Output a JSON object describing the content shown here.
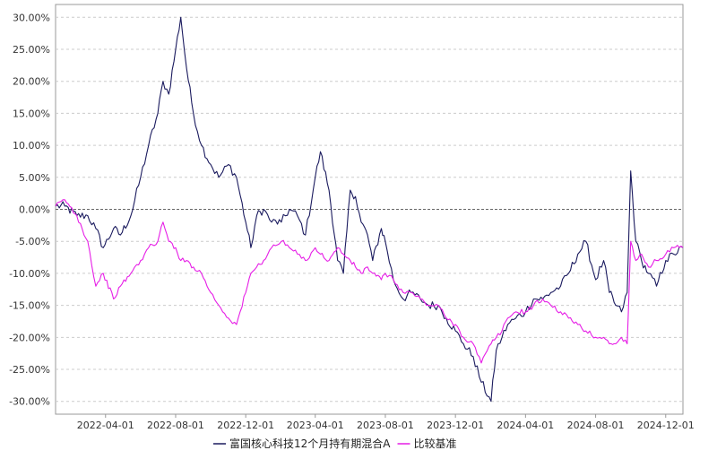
{
  "chart_data": {
    "type": "line",
    "title": "",
    "xlabel": "",
    "ylabel": "",
    "ylim": [
      -32,
      32
    ],
    "y_ticks": [
      30,
      25,
      20,
      15,
      10,
      5,
      0,
      -5,
      -10,
      -15,
      -20,
      -25,
      -30
    ],
    "y_tick_labels": [
      "30.00%",
      "25.00%",
      "20.00%",
      "15.00%",
      "10.00%",
      "5.00%",
      "0.00%",
      "-5.00%",
      "-10.00%",
      "-15.00%",
      "-20.00%",
      "-25.00%",
      "-30.00%"
    ],
    "x_range": [
      "2022-01-04",
      "2024-12-31"
    ],
    "x_tick_labels": [
      "2022-04-01",
      "2022-08-01",
      "2022-12-01",
      "2023-04-01",
      "2023-08-01",
      "2023-12-01",
      "2024-04-01",
      "2024-08-01",
      "2024-12-01"
    ],
    "grid": "horizontal-dashed",
    "zero_line": "dashed",
    "legend_position": "bottom-center",
    "series": [
      {
        "name": "富国核心科技12个月持有期混合A",
        "color": "#1a1a5e",
        "x": [
          "2022-01-04",
          "2022-01-20",
          "2022-02-10",
          "2022-03-01",
          "2022-03-15",
          "2022-03-28",
          "2022-04-15",
          "2022-04-27",
          "2022-05-15",
          "2022-06-01",
          "2022-06-15",
          "2022-07-01",
          "2022-07-10",
          "2022-07-20",
          "2022-08-01",
          "2022-08-10",
          "2022-08-20",
          "2022-09-01",
          "2022-09-15",
          "2022-10-01",
          "2022-10-15",
          "2022-11-01",
          "2022-11-15",
          "2022-12-01",
          "2022-12-10",
          "2022-12-20",
          "2023-01-01",
          "2023-01-15",
          "2023-02-01",
          "2023-02-15",
          "2023-03-01",
          "2023-03-15",
          "2023-04-01",
          "2023-04-10",
          "2023-04-25",
          "2023-05-10",
          "2023-05-20",
          "2023-06-01",
          "2023-06-10",
          "2023-06-20",
          "2023-07-01",
          "2023-07-10",
          "2023-07-25",
          "2023-08-01",
          "2023-08-15",
          "2023-09-01",
          "2023-09-15",
          "2023-10-01",
          "2023-10-15",
          "2023-11-01",
          "2023-11-15",
          "2023-12-01",
          "2023-12-15",
          "2024-01-01",
          "2024-01-15",
          "2024-02-01",
          "2024-02-10",
          "2024-02-20",
          "2024-03-01",
          "2024-03-15",
          "2024-04-01",
          "2024-04-15",
          "2024-05-01",
          "2024-05-15",
          "2024-06-01",
          "2024-06-15",
          "2024-07-01",
          "2024-07-15",
          "2024-08-01",
          "2024-08-15",
          "2024-08-25",
          "2024-09-05",
          "2024-09-15",
          "2024-09-25",
          "2024-10-01",
          "2024-10-10",
          "2024-10-20",
          "2024-11-01",
          "2024-11-15",
          "2024-12-01",
          "2024-12-15",
          "2024-12-31"
        ],
        "values": [
          0.5,
          0.5,
          -1,
          -1,
          -3,
          -6,
          -3,
          -4,
          -1,
          5,
          10,
          15,
          20,
          18,
          25,
          30,
          22,
          15,
          10,
          7,
          5,
          7,
          5,
          -2,
          -6,
          -1,
          0,
          -2,
          -2,
          0,
          -1,
          -4,
          5,
          9,
          3,
          -8,
          -10,
          3,
          2,
          -2,
          -4,
          -8,
          -3,
          -5,
          -11,
          -14,
          -13,
          -14,
          -15,
          -15,
          -17,
          -19,
          -21,
          -23,
          -27,
          -30,
          -22,
          -20,
          -18,
          -17,
          -16,
          -14,
          -14,
          -13,
          -12,
          -10,
          -7,
          -5,
          -11,
          -8,
          -13,
          -15,
          -16,
          -13,
          6,
          -5,
          -8,
          -10,
          -12,
          -8,
          -7,
          -6
        ]
      },
      {
        "name": "比较基准",
        "color": "#e61ee6",
        "x": [
          "2022-01-04",
          "2022-01-20",
          "2022-02-10",
          "2022-03-01",
          "2022-03-15",
          "2022-03-28",
          "2022-04-15",
          "2022-04-27",
          "2022-05-15",
          "2022-06-01",
          "2022-06-15",
          "2022-07-01",
          "2022-07-10",
          "2022-07-20",
          "2022-08-01",
          "2022-08-10",
          "2022-08-20",
          "2022-09-01",
          "2022-09-15",
          "2022-10-01",
          "2022-10-15",
          "2022-11-01",
          "2022-11-15",
          "2022-12-01",
          "2022-12-10",
          "2022-12-20",
          "2023-01-01",
          "2023-01-15",
          "2023-02-01",
          "2023-02-15",
          "2023-03-01",
          "2023-03-15",
          "2023-04-01",
          "2023-04-10",
          "2023-04-25",
          "2023-05-10",
          "2023-05-20",
          "2023-06-01",
          "2023-06-10",
          "2023-06-20",
          "2023-07-01",
          "2023-07-10",
          "2023-07-25",
          "2023-08-01",
          "2023-08-15",
          "2023-09-01",
          "2023-09-15",
          "2023-10-01",
          "2023-10-15",
          "2023-11-01",
          "2023-11-15",
          "2023-12-01",
          "2023-12-15",
          "2024-01-01",
          "2024-01-15",
          "2024-02-01",
          "2024-02-10",
          "2024-02-20",
          "2024-03-01",
          "2024-03-15",
          "2024-04-01",
          "2024-04-15",
          "2024-05-01",
          "2024-05-15",
          "2024-06-01",
          "2024-06-15",
          "2024-07-01",
          "2024-07-15",
          "2024-08-01",
          "2024-08-15",
          "2024-08-25",
          "2024-09-05",
          "2024-09-15",
          "2024-09-25",
          "2024-10-01",
          "2024-10-10",
          "2024-10-20",
          "2024-11-01",
          "2024-11-15",
          "2024-12-01",
          "2024-12-15",
          "2024-12-31"
        ],
        "values": [
          0.5,
          1.5,
          -1,
          -5,
          -12,
          -10,
          -14,
          -12,
          -10,
          -8,
          -6,
          -5,
          -2,
          -5,
          -6,
          -8,
          -8,
          -9,
          -10,
          -13,
          -15,
          -17,
          -18,
          -13,
          -10,
          -9,
          -8,
          -6,
          -5,
          -6,
          -7,
          -8,
          -6,
          -7,
          -8,
          -6,
          -7,
          -8,
          -9,
          -10,
          -9,
          -10,
          -11,
          -10,
          -11,
          -13,
          -13,
          -14,
          -15,
          -15,
          -17,
          -18,
          -20,
          -21,
          -24,
          -21,
          -20,
          -19,
          -17,
          -16,
          -16,
          -15,
          -14,
          -15,
          -16,
          -17,
          -18,
          -19,
          -20,
          -20,
          -21,
          -21,
          -20,
          -21,
          -5,
          -8,
          -7,
          -9,
          -8,
          -7,
          -6,
          -6
        ]
      }
    ]
  }
}
